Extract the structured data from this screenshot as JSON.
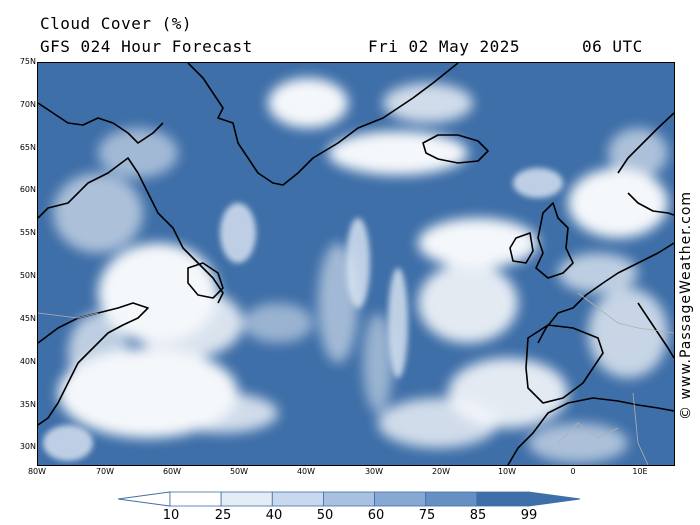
{
  "header": {
    "title": "Cloud Cover (%)",
    "subtitle": "GFS 024 Hour Forecast",
    "date": "Fri 02 May 2025",
    "time": "06 UTC"
  },
  "watermark": "© www.PassageWeather.com",
  "map": {
    "ocean_color": "#3f6fa8",
    "cloud_color": "#ffffff",
    "coastline_color": "#000000",
    "border_color": "#b0b0b0",
    "lat_labels": [
      "75N",
      "70N",
      "65N",
      "60N",
      "55N",
      "50N",
      "45N",
      "40N",
      "35N",
      "30N"
    ],
    "lon_labels": [
      "80W",
      "70W",
      "60W",
      "50W",
      "40W",
      "30W",
      "20W",
      "10W",
      "0",
      "10E"
    ]
  },
  "colorbar": {
    "labels": [
      "10",
      "25",
      "40",
      "50",
      "60",
      "75",
      "85",
      "99"
    ],
    "colors": [
      "#ffffff",
      "#ffffff",
      "#e4ecf6",
      "#c9d9ed",
      "#a9c1e0",
      "#87a8d2",
      "#6690c4",
      "#3f6fa8",
      "#2c5a96"
    ]
  }
}
